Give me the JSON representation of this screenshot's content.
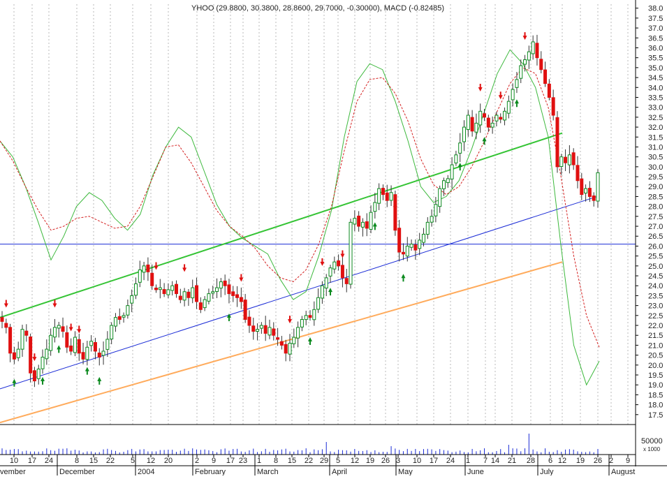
{
  "chart_data": {
    "type": "candlestick",
    "title": "YHOO (29.8800, 30.3800, 28.8600, 29.7000, -0.30000), MACD (-0.82485)",
    "quote": {
      "open": 29.88,
      "high": 30.38,
      "low": 28.86,
      "close": 29.7,
      "change": -0.3
    },
    "macd": -0.82485,
    "ylim": [
      17.0,
      38.2
    ],
    "y_ticks": [
      "17.5",
      "18.0",
      "18.5",
      "19.0",
      "19.5",
      "20.0",
      "20.5",
      "21.0",
      "21.5",
      "22.0",
      "22.5",
      "23.0",
      "23.5",
      "24.0",
      "24.5",
      "25.0",
      "25.5",
      "26.0",
      "26.5",
      "27.0",
      "27.5",
      "28.0",
      "28.5",
      "29.0",
      "29.5",
      "30.0",
      "30.5",
      "31.0",
      "31.5",
      "32.0",
      "32.5",
      "33.0",
      "33.5",
      "34.0",
      "34.5",
      "35.0",
      "35.5",
      "36.0",
      "36.5",
      "37.0",
      "37.5",
      "38.0"
    ],
    "volume_label": "50000",
    "volume_unit": "x 1000",
    "day_labels": [
      "10",
      "17",
      "24",
      "8",
      "15",
      "22",
      "5",
      "12",
      "20",
      "2",
      "9",
      "17",
      "23",
      "1",
      "8",
      "15",
      "22",
      "29",
      "5",
      "12",
      "19",
      "26",
      "3",
      "10",
      "17",
      "24",
      "1",
      "7",
      "14",
      "21",
      "28",
      "6",
      "12",
      "19",
      "26",
      "2",
      "9"
    ],
    "month_labels": [
      "November",
      "December",
      "2004",
      "February",
      "March",
      "April",
      "May",
      "June",
      "July",
      "August"
    ],
    "price_path": [
      22.2,
      21.9,
      20.6,
      20.3,
      20.8,
      21.8,
      21.5,
      19.6,
      19.2,
      19.8,
      20.4,
      20.8,
      21.5,
      21.9,
      22.0,
      21.7,
      20.9,
      20.7,
      21.4,
      20.6,
      20.3,
      20.9,
      21.2,
      20.7,
      20.4,
      20.7,
      21.3,
      22.0,
      22.4,
      22.3,
      22.5,
      23.0,
      23.5,
      24.1,
      24.8,
      25.0,
      24.7,
      24.0,
      23.8,
      23.9,
      23.6,
      23.8,
      24.0,
      23.6,
      23.3,
      23.7,
      23.4,
      23.9,
      23.2,
      22.8,
      23.3,
      23.6,
      23.7,
      23.9,
      24.2,
      24.0,
      23.6,
      23.5,
      23.4,
      23.2,
      22.3,
      22.0,
      21.7,
      21.8,
      22.0,
      21.6,
      21.9,
      21.5,
      21.3,
      21.0,
      20.6,
      21.1,
      21.4,
      21.9,
      22.3,
      22.5,
      22.4,
      22.8,
      23.4,
      24.0,
      24.4,
      24.9,
      25.2,
      25.0,
      24.4,
      24.1,
      27.2,
      27.4,
      27.0,
      27.2,
      26.9,
      27.7,
      28.2,
      28.9,
      28.6,
      28.3,
      28.7,
      26.8,
      25.7,
      25.6,
      26.0,
      26.1,
      25.8,
      26.3,
      26.6,
      27.2,
      27.5,
      28.1,
      28.9,
      29.3,
      29.4,
      30.1,
      30.6,
      31.2,
      32.0,
      32.6,
      31.8,
      32.2,
      32.8,
      32.5,
      32.0,
      32.2,
      32.6,
      32.4,
      32.8,
      33.3,
      33.9,
      34.4,
      35.1,
      35.4,
      35.8,
      36.3,
      35.5,
      34.9,
      34.2,
      33.5,
      32.6,
      30.0,
      30.5,
      30.2,
      30.6,
      30.1,
      29.3,
      28.6,
      28.9,
      28.5,
      28.3,
      29.7
    ],
    "upper_channel": {
      "from": [
        0,
        22.4
      ],
      "to": [
        805,
        31.7
      ]
    },
    "middle_channel": {
      "from": [
        0,
        18.8
      ],
      "to": [
        855,
        28.5
      ]
    },
    "lower_channel": {
      "from": [
        0,
        17.1
      ],
      "to": [
        805,
        25.2
      ]
    },
    "horizontal_line": 26.1,
    "oscillator_path": [
      31.3,
      30.5,
      29.0,
      27.2,
      25.3,
      26.5,
      28.0,
      28.7,
      28.3,
      27.4,
      26.8,
      27.6,
      29.6,
      31.0,
      32.0,
      31.5,
      29.8,
      28.1,
      27.0,
      26.4,
      26.0,
      25.6,
      24.3,
      23.3,
      23.7,
      25.5,
      27.8,
      31.5,
      34.3,
      35.2,
      34.9,
      33.3,
      31.3,
      29.0,
      28.2,
      28.5,
      29.3,
      30.9,
      32.8,
      34.7,
      35.9,
      35.2,
      34.0,
      31.5,
      26.0,
      21.0,
      19.0,
      20.2
    ],
    "signal_path": [
      31.3,
      30.3,
      29.0,
      27.8,
      26.8,
      27.0,
      27.4,
      27.5,
      27.2,
      26.9,
      27.0,
      28.0,
      29.5,
      31.0,
      31.1,
      30.2,
      29.0,
      27.8,
      27.0,
      26.5,
      25.9,
      25.0,
      24.4,
      24.2,
      24.8,
      26.1,
      28.0,
      30.8,
      33.3,
      34.4,
      34.5,
      33.7,
      32.3,
      30.4,
      29.1,
      28.6,
      29.0,
      30.0,
      31.3,
      32.8,
      34.2,
      35.0,
      34.7,
      33.0,
      29.5,
      25.5,
      22.5,
      20.9
    ]
  }
}
